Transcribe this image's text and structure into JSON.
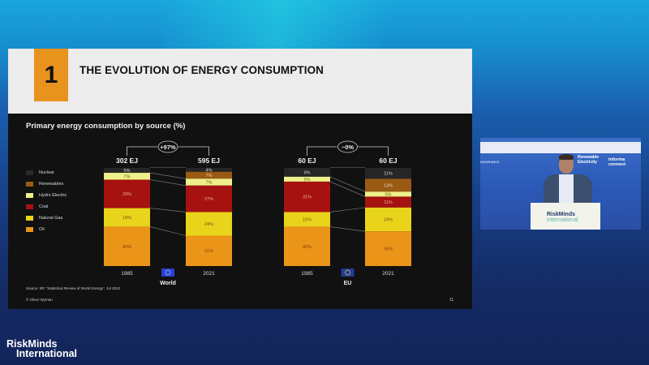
{
  "slide": {
    "number": "1",
    "title": "THE EVOLUTION OF ENERGY CONSUMPTION",
    "chart_title": "Primary energy consumption by source (%)",
    "footnote": "Source: BP, \"Statistical Review of World Energy\", Jul 2022",
    "copyright": "© Oliver Wyman",
    "page_number": "11"
  },
  "legend": [
    {
      "label": "Nuclear",
      "color": "#1c1c1c"
    },
    {
      "label": "Renewables",
      "color": "#9a5a14"
    },
    {
      "label": "Hydro Electric",
      "color": "#eef08a"
    },
    {
      "label": "Coal",
      "color": "#a5120f"
    },
    {
      "label": "Natural Gas",
      "color": "#e8d41a"
    },
    {
      "label": "Oil",
      "color": "#ea9418"
    }
  ],
  "chart_data": {
    "type": "bar",
    "stacked": true,
    "title": "Primary energy consumption by source (%)",
    "series_order": [
      "Nuclear",
      "Renewables",
      "Hydro Electric",
      "Coal",
      "Natural Gas",
      "Oil"
    ],
    "groups": [
      {
        "region": "World",
        "change_label": "+97%",
        "bars": [
          {
            "year": "1985",
            "total_label": "302 EJ",
            "values": {
              "Nuclear": 5,
              "Renewables": 0,
              "Hydro Electric": 7,
              "Coal": 29,
              "Natural Gas": 19,
              "Oil": 40
            }
          },
          {
            "year": "2021",
            "total_label": "595 EJ",
            "values": {
              "Nuclear": 4,
              "Renewables": 7,
              "Hydro Electric": 7,
              "Coal": 27,
              "Natural Gas": 24,
              "Oil": 31
            }
          }
        ]
      },
      {
        "region": "EU",
        "change_label": "~0%",
        "bars": [
          {
            "year": "1985",
            "total_label": "60 EJ",
            "values": {
              "Nuclear": 9,
              "Renewables": 0,
              "Hydro Electric": 5,
              "Coal": 31,
              "Natural Gas": 15,
              "Oil": 40
            }
          },
          {
            "year": "2021",
            "total_label": "60 EJ",
            "values": {
              "Nuclear": 11,
              "Renewables": 13,
              "Hydro Electric": 5,
              "Coal": 11,
              "Natural Gas": 24,
              "Oil": 35
            }
          }
        ]
      }
    ],
    "ylim": [
      0,
      100
    ]
  },
  "video": {
    "logo_left": "INSURANCE",
    "logo_mid_1": "Renewable",
    "logo_mid_2": "Electricity",
    "logo_right": "informa connect",
    "podium_line1": "RiskMinds",
    "podium_line2": "International"
  },
  "brand": {
    "line1": "RiskMinds",
    "line2": "International"
  }
}
